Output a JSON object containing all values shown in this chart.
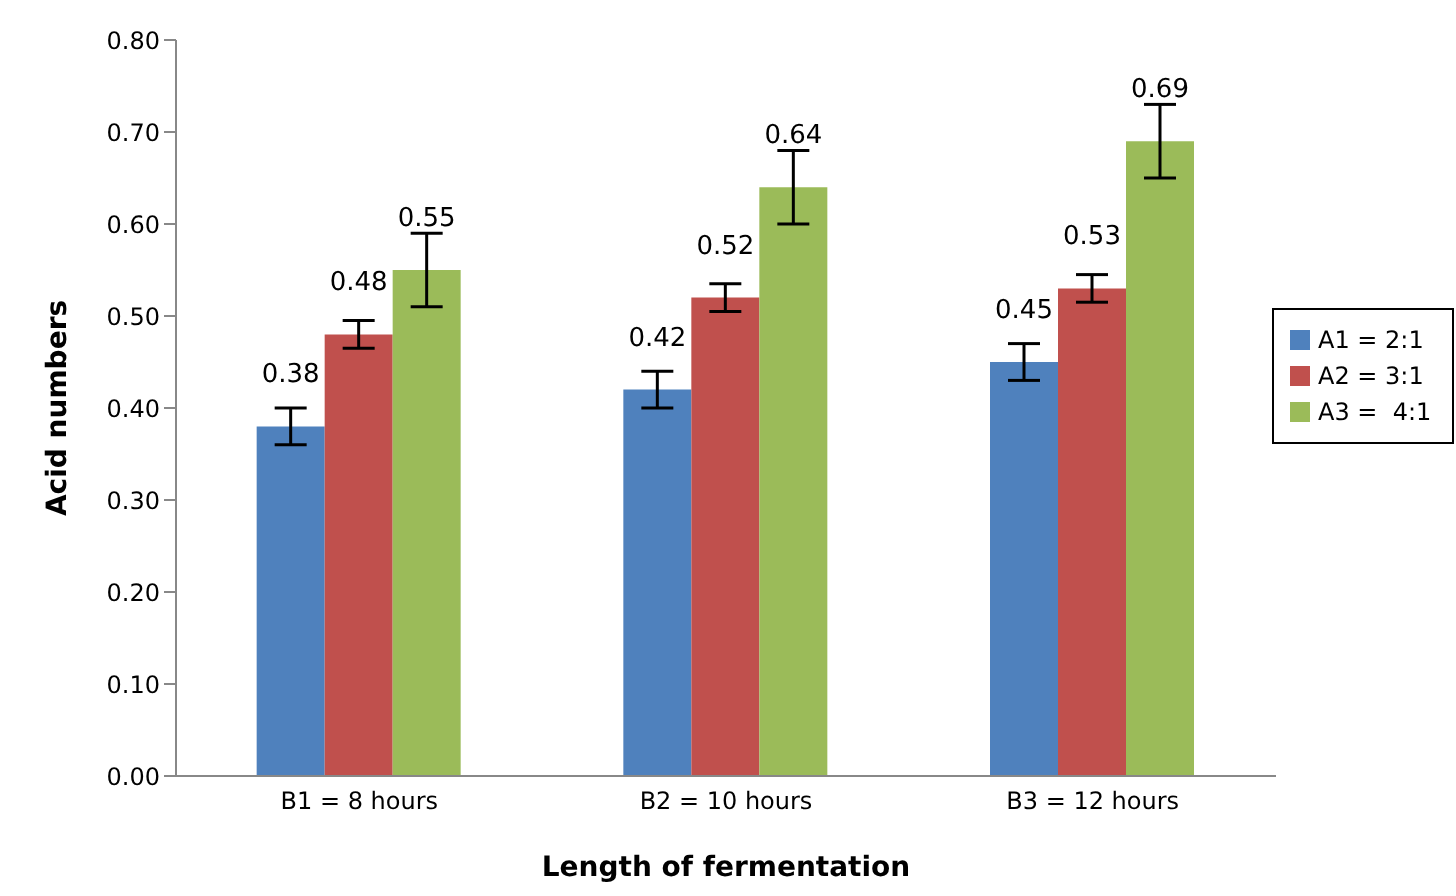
{
  "chart_data": {
    "type": "bar",
    "xlabel": "Length of fermentation",
    "ylabel": "Acid numbers",
    "categories": [
      "B1 = 8 hours",
      "B2 = 10 hours",
      "B3 = 12 hours"
    ],
    "series": [
      {
        "name": "A1 = 2:1",
        "color": "#4f81bd",
        "values": [
          0.38,
          0.42,
          0.45
        ],
        "errors": [
          0.02,
          0.02,
          0.02
        ]
      },
      {
        "name": "A2 = 3:1",
        "color": "#c0504d",
        "values": [
          0.48,
          0.52,
          0.53
        ],
        "errors": [
          0.015,
          0.015,
          0.015
        ]
      },
      {
        "name": "A3 =  4:1",
        "color": "#9bbb59",
        "values": [
          0.55,
          0.64,
          0.69
        ],
        "errors": [
          0.04,
          0.04,
          0.04
        ]
      }
    ],
    "ylim": [
      0,
      0.8
    ],
    "yticks": [
      {
        "value": 0,
        "label": "0.00"
      },
      {
        "value": 0.1,
        "label": "0.10"
      },
      {
        "value": 0.2,
        "label": "0.20"
      },
      {
        "value": 0.3,
        "label": "0.30"
      },
      {
        "value": 0.4,
        "label": "0.40"
      },
      {
        "value": 0.5,
        "label": "0.50"
      },
      {
        "value": 0.6,
        "label": "0.60"
      },
      {
        "value": 0.7,
        "label": "0.70"
      },
      {
        "value": 0.8,
        "label": "0.80"
      }
    ],
    "data_labels": true,
    "legend": "right",
    "grid": false
  }
}
